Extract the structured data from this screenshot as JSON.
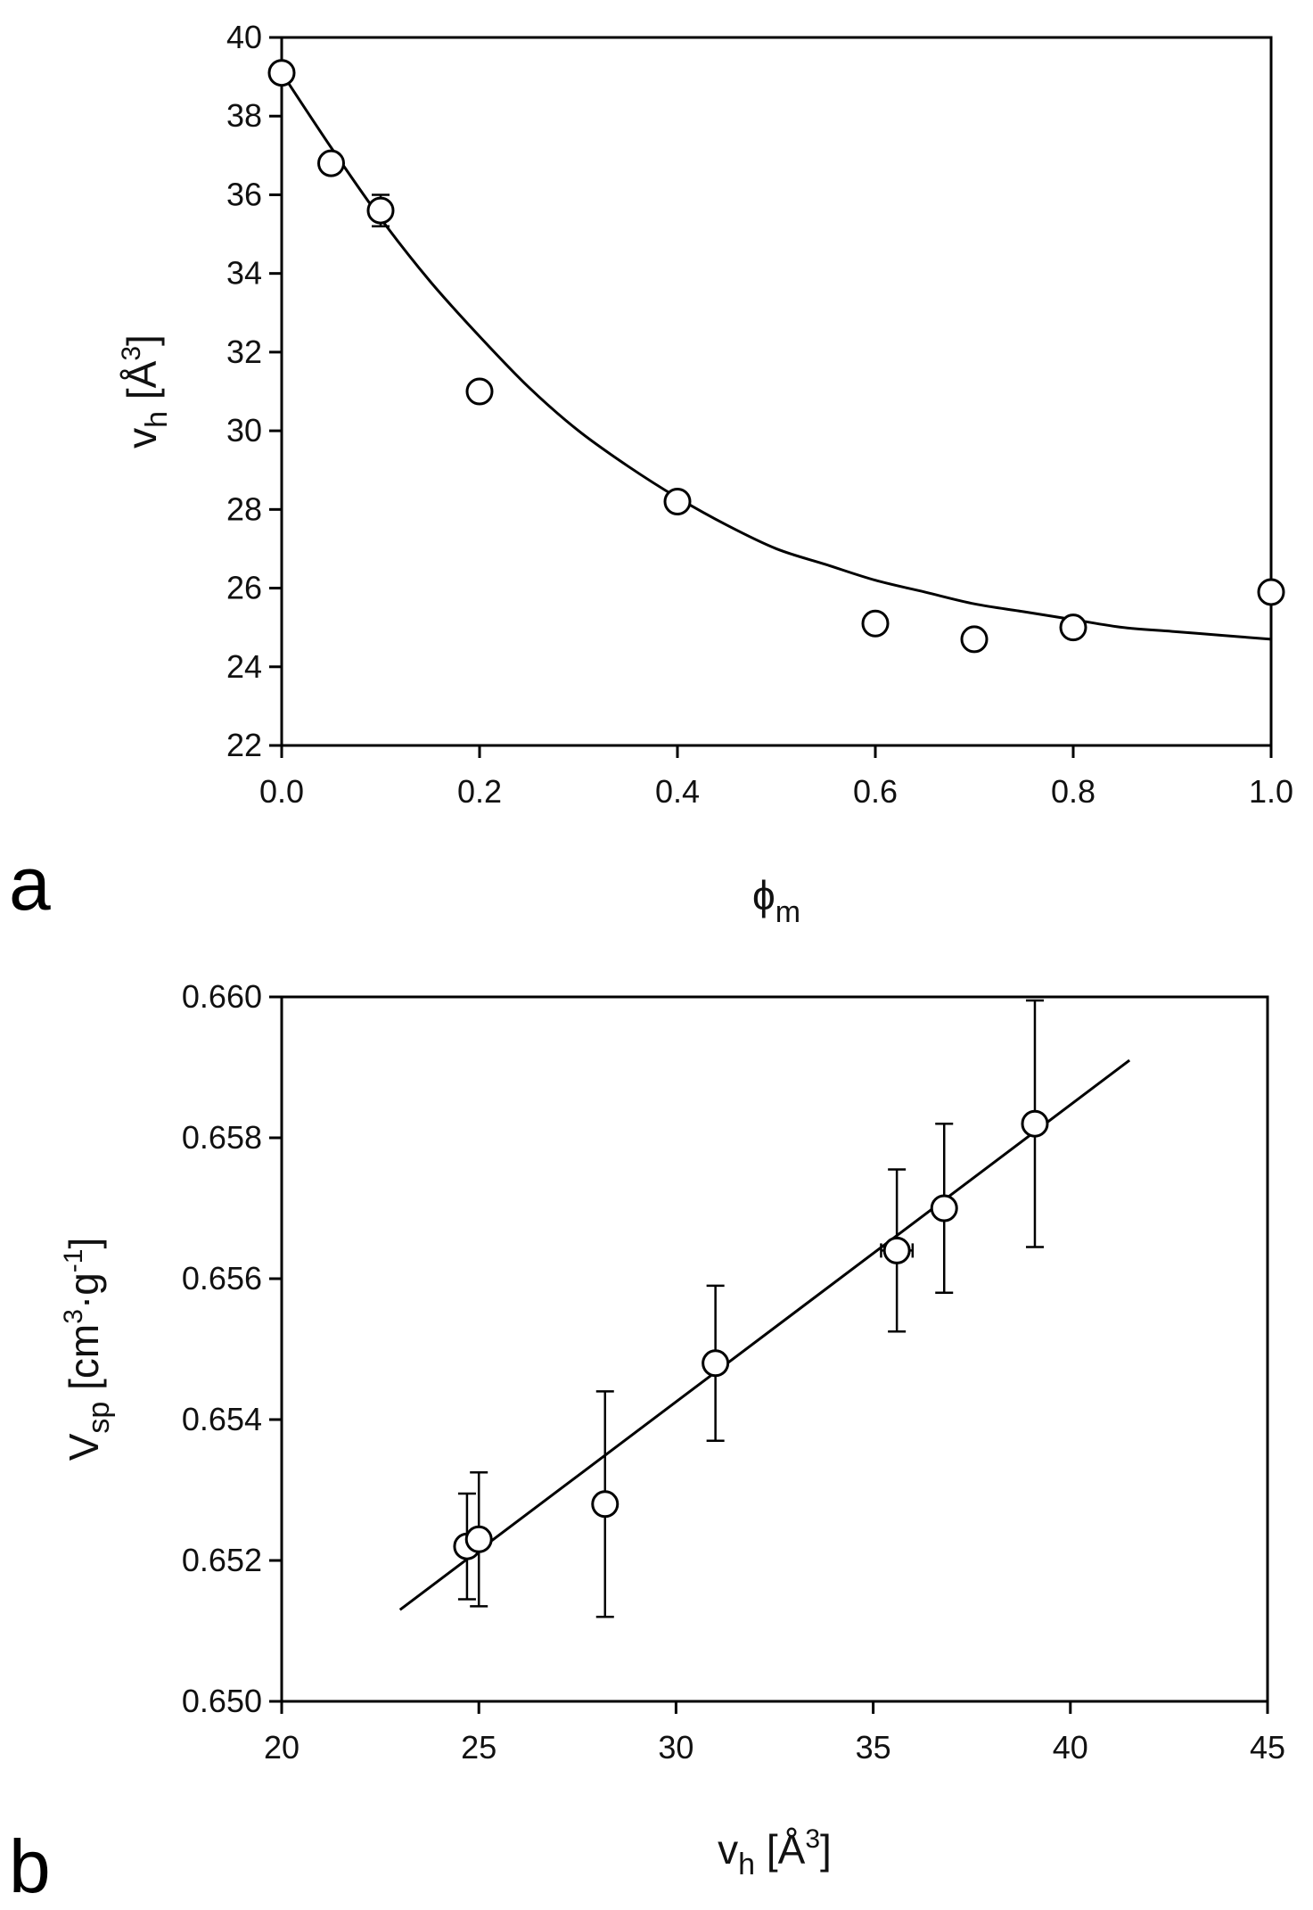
{
  "chart_data": [
    {
      "type": "scatter",
      "panel_label": "a",
      "xlabel": "ϕ",
      "xlabel_sub": "m",
      "ylabel": "v",
      "ylabel_sub": "h",
      "ylabel_rest": " [Å",
      "ylabel_sup": "3",
      "ylabel_end": "]",
      "xlim": [
        0.0,
        1.0
      ],
      "ylim": [
        22,
        40
      ],
      "xticks": [
        "0.0",
        "0.2",
        "0.4",
        "0.6",
        "0.8",
        "1.0"
      ],
      "yticks": [
        "22",
        "24",
        "26",
        "28",
        "30",
        "32",
        "34",
        "36",
        "38",
        "40"
      ],
      "grid": false,
      "points": {
        "x": [
          0.0,
          0.05,
          0.1,
          0.2,
          0.4,
          0.6,
          0.7,
          0.8,
          1.0
        ],
        "y": [
          39.1,
          36.8,
          35.6,
          31.0,
          28.2,
          25.1,
          24.7,
          25.0,
          25.9
        ],
        "yerr": [
          0,
          0,
          0.4,
          0,
          0,
          0,
          0,
          0,
          0
        ]
      },
      "fit": {
        "type": "exponential decay",
        "x": [
          0.0,
          0.05,
          0.1,
          0.15,
          0.2,
          0.25,
          0.3,
          0.35,
          0.4,
          0.45,
          0.5,
          0.55,
          0.6,
          0.65,
          0.7,
          0.75,
          0.8,
          0.85,
          0.9,
          0.95,
          1.0
        ],
        "y": [
          39.1,
          37.2,
          35.4,
          33.8,
          32.4,
          31.1,
          30.0,
          29.1,
          28.3,
          27.6,
          27.0,
          26.6,
          26.2,
          25.9,
          25.6,
          25.4,
          25.2,
          25.0,
          24.9,
          24.8,
          24.7
        ]
      }
    },
    {
      "type": "scatter",
      "panel_label": "b",
      "xlabel": "v",
      "xlabel_sub": "h",
      "xlabel_rest": " [Å",
      "xlabel_sup": "3",
      "xlabel_end": "]",
      "ylabel": "V",
      "ylabel_sub": "sp",
      "ylabel_rest": " [cm",
      "ylabel_sup": "3",
      "ylabel_mid": "·g",
      "ylabel_sup2": "-1",
      "ylabel_end": "]",
      "xlim": [
        20,
        45
      ],
      "ylim": [
        0.65,
        0.66
      ],
      "xticks": [
        "20",
        "25",
        "30",
        "35",
        "40",
        "45"
      ],
      "yticks": [
        "0.650",
        "0.652",
        "0.654",
        "0.656",
        "0.658",
        "0.660"
      ],
      "grid": false,
      "points": {
        "x": [
          24.7,
          25.0,
          28.2,
          31.0,
          35.6,
          36.8,
          39.1
        ],
        "y": [
          0.6522,
          0.6523,
          0.6528,
          0.6548,
          0.6564,
          0.657,
          0.6582
        ],
        "yerr": [
          0.00075,
          0.00095,
          0.0016,
          0.0011,
          0.00115,
          0.0012,
          0.00175
        ],
        "xerr": [
          0,
          0,
          0,
          0,
          0.4,
          0,
          0
        ]
      },
      "fit": {
        "type": "linear",
        "x": [
          23.0,
          41.5
        ],
        "y": [
          0.6513,
          0.6591
        ]
      }
    }
  ]
}
